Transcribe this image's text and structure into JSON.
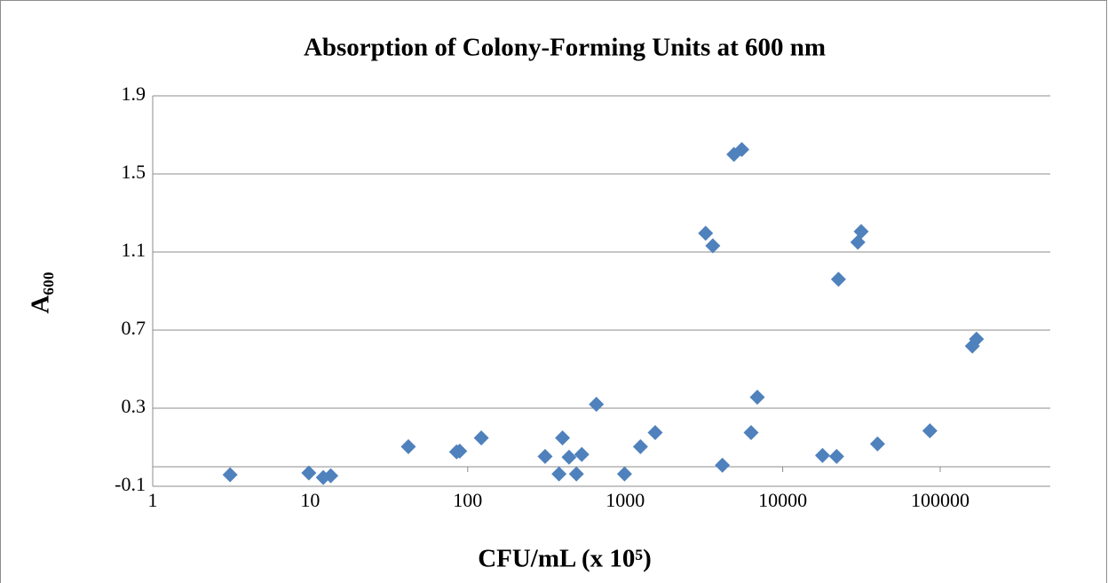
{
  "chart_data": {
    "type": "scatter",
    "title": "Absorption of Colony-Forming Units at 600 nm",
    "x_label": "CFU/mL (x 10⁵)",
    "y_label": "A₆₀₀",
    "x": [
      3.1,
      9.8,
      12.1,
      13.5,
      42,
      85,
      89,
      122,
      310,
      380,
      400,
      440,
      490,
      530,
      656,
      990,
      1250,
      1550,
      3240,
      3600,
      4140,
      4900,
      5500,
      6300,
      6900,
      17900,
      22000,
      22600,
      30000,
      31500,
      40000,
      86000,
      160000,
      170000
    ],
    "values": [
      -0.041,
      -0.032,
      -0.055,
      -0.046,
      0.103,
      0.076,
      0.08,
      0.148,
      0.053,
      -0.037,
      0.148,
      0.049,
      -0.037,
      0.063,
      0.32,
      -0.037,
      0.103,
      0.175,
      1.196,
      1.132,
      0.008,
      1.6,
      1.625,
      0.175,
      0.356,
      0.058,
      0.053,
      0.96,
      1.15,
      1.205,
      0.117,
      0.184,
      0.618,
      0.654
    ],
    "color": "#4f81bd",
    "xscale": "log",
    "xlim": [
      1,
      500000
    ],
    "xticks": [
      1,
      10,
      100,
      1000,
      10000,
      100000
    ],
    "ylim": [
      -0.1,
      1.9
    ],
    "yticks": [
      -0.1,
      0.3,
      0.7,
      1.1,
      1.5,
      1.9
    ],
    "grid": true
  }
}
